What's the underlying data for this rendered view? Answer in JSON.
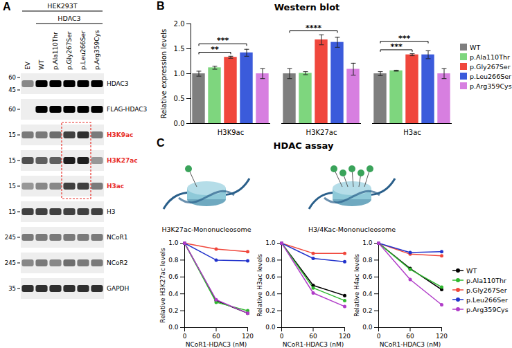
{
  "panel_a": {
    "label": "A",
    "cell_line": "HEK293T",
    "construct": "HDAC3",
    "lanes": [
      "EV",
      "WT",
      "p.Ala110Thr",
      "p.Gly267Ser",
      "p.Leu266Ser",
      "p.Arg359Cys"
    ],
    "construct_lanes": [
      "WT",
      "p.Ala110Thr",
      "p.Gly267Ser",
      "p.Leu266Ser",
      "p.Arg359Cys"
    ],
    "highlight": {
      "color": "#e8302a",
      "lanes": [
        "p.Gly267Ser",
        "p.Leu266Ser"
      ],
      "rows": [
        "H3K9ac",
        "H3K27ac",
        "H3ac"
      ]
    },
    "rows": [
      {
        "name": "HDAC3",
        "markers": [
          60,
          45
        ],
        "bands": [
          0.55,
          1,
          1,
          1,
          1,
          1
        ]
      },
      {
        "name": "FLAG-HDAC3",
        "markers": [
          60
        ],
        "bands": [
          0,
          1,
          1,
          1,
          1,
          1
        ]
      },
      {
        "name": "H3K9ac",
        "markers": [
          15
        ],
        "bands": [
          0.6,
          0.6,
          0.65,
          0.8,
          0.85,
          0.6
        ]
      },
      {
        "name": "H3K27ac",
        "markers": [
          15
        ],
        "bands": [
          0.75,
          0.7,
          0.7,
          0.9,
          0.9,
          0.5
        ]
      },
      {
        "name": "H3ac",
        "markers": [
          15
        ],
        "bands": [
          0.5,
          0.55,
          0.55,
          0.8,
          0.8,
          0.6
        ]
      },
      {
        "name": "H3",
        "markers": [
          15
        ],
        "bands": [
          0.8,
          0.8,
          0.8,
          0.8,
          0.8,
          0.8
        ]
      },
      {
        "name": "NCoR1",
        "markers": [
          245
        ],
        "bands": [
          0.6,
          0.6,
          0.6,
          0.6,
          0.6,
          0.6
        ]
      },
      {
        "name": "NCoR2",
        "markers": [
          245
        ],
        "bands": [
          0.55,
          0.6,
          0.55,
          0.65,
          0.6,
          0.6
        ]
      },
      {
        "name": "GAPDH",
        "markers": [
          35
        ],
        "bands": [
          0.85,
          0.85,
          0.85,
          0.85,
          0.85,
          0.85
        ]
      }
    ]
  },
  "panel_c": {
    "label": "C",
    "title": "HDAC assay",
    "subtitles": [
      "H3K27ac-Mononucleosome",
      "H3/4Kac-Mononucleosome"
    ]
  },
  "chart_data": [
    {
      "panel_label": "B",
      "type": "bar",
      "title": "Western blot",
      "y_label": "Relative expression levels",
      "categories": [
        "H3K9ac",
        "H3K27ac",
        "H3ac"
      ],
      "series": [
        {
          "name": "WT",
          "color": "#7f7f7f",
          "values": [
            1.0,
            1.0,
            1.0
          ],
          "errors": [
            0.05,
            0.1,
            0.04
          ]
        },
        {
          "name": "p.Ala110Thr",
          "color": "#7ed67e",
          "values": [
            1.12,
            1.01,
            1.06
          ],
          "errors": [
            0.03,
            0.03,
            0.01
          ]
        },
        {
          "name": "p.Gly267Ser",
          "color": "#f0473c",
          "values": [
            1.33,
            1.68,
            1.38
          ],
          "errors": [
            0.02,
            0.1,
            0.02
          ]
        },
        {
          "name": "p.Leu266Ser",
          "color": "#3b5bdb",
          "values": [
            1.42,
            1.63,
            1.38
          ],
          "errors": [
            0.07,
            0.1,
            0.08
          ]
        },
        {
          "name": "p.Arg359Cys",
          "color": "#d77fe0",
          "values": [
            1.0,
            1.09,
            1.0
          ],
          "errors": [
            0.1,
            0.12,
            0.1
          ]
        }
      ],
      "ylim": [
        0,
        2.0
      ],
      "yticks": [
        {
          "value": 0,
          "label": "0.0"
        },
        {
          "value": 0.5,
          "label": "0.5"
        },
        {
          "value": 1,
          "label": "1.0"
        },
        {
          "value": 1.5,
          "label": "1.5"
        },
        {
          "value": 2,
          "label": "2.0"
        }
      ],
      "legend": "right",
      "annotations": [
        {
          "category": "H3K9ac",
          "from": "WT",
          "to": "p.Gly267Ser",
          "text": "**"
        },
        {
          "category": "H3K9ac",
          "from": "WT",
          "to": "p.Leu266Ser",
          "text": "***"
        },
        {
          "category": "H3K27ac",
          "from": "WT",
          "to": "p.Leu266Ser",
          "text": "****"
        },
        {
          "category": "H3ac",
          "from": "WT",
          "to": "p.Gly267Ser",
          "text": "***"
        },
        {
          "category": "H3ac",
          "from": "WT",
          "to": "p.Leu266Ser",
          "text": "***"
        }
      ]
    },
    {
      "type": "line",
      "x_label": "NCoR1-HDAC3 (nM)",
      "y_label": "Relative H3K27ac levels",
      "marker": "circle",
      "x": [
        0,
        60,
        120
      ],
      "xlim": [
        0,
        120
      ],
      "xticks": [
        0,
        60,
        120
      ],
      "ylim": [
        0,
        1.0
      ],
      "yticks": [
        {
          "value": 0,
          "label": "0.0"
        },
        {
          "value": 0.2,
          "label": "0.2"
        },
        {
          "value": 0.4,
          "label": "0.4"
        },
        {
          "value": 0.6,
          "label": "0.6"
        },
        {
          "value": 0.8,
          "label": "0.8"
        },
        {
          "value": 1,
          "label": "1.0"
        }
      ],
      "series": [
        {
          "name": "WT",
          "color": "#000000",
          "values": [
            1.0,
            0.32,
            0.17
          ]
        },
        {
          "name": "p.Ala110Thr",
          "color": "#2fb82f",
          "values": [
            1.0,
            0.3,
            0.2
          ]
        },
        {
          "name": "p.Gly267Ser",
          "color": "#f0473c",
          "values": [
            1.0,
            0.93,
            0.9
          ]
        },
        {
          "name": "p.Leu266Ser",
          "color": "#2233cc",
          "values": [
            1.0,
            0.8,
            0.79
          ]
        },
        {
          "name": "p.Arg359Cys",
          "color": "#b03cc8",
          "values": [
            1.0,
            0.33,
            0.17
          ]
        }
      ]
    },
    {
      "type": "line",
      "x_label": "NCoR1-HDAC3 (nM)",
      "y_label": "Relative H3ac levels",
      "marker": "circle",
      "x": [
        0,
        60,
        120
      ],
      "xlim": [
        0,
        120
      ],
      "xticks": [
        0,
        60,
        120
      ],
      "ylim": [
        0,
        1.0
      ],
      "yticks": [
        {
          "value": 0,
          "label": "0.0"
        },
        {
          "value": 0.2,
          "label": "0.2"
        },
        {
          "value": 0.4,
          "label": "0.4"
        },
        {
          "value": 0.6,
          "label": "0.6"
        },
        {
          "value": 0.8,
          "label": "0.8"
        },
        {
          "value": 1,
          "label": "1.0"
        }
      ],
      "series": [
        {
          "name": "WT",
          "color": "#000000",
          "values": [
            1.0,
            0.5,
            0.38
          ]
        },
        {
          "name": "p.Ala110Thr",
          "color": "#2fb82f",
          "values": [
            1.0,
            0.47,
            0.32
          ]
        },
        {
          "name": "p.Gly267Ser",
          "color": "#f0473c",
          "values": [
            1.0,
            0.88,
            0.88
          ]
        },
        {
          "name": "p.Leu266Ser",
          "color": "#2233cc",
          "values": [
            1.0,
            0.82,
            0.78
          ]
        },
        {
          "name": "p.Arg359Cys",
          "color": "#b03cc8",
          "values": [
            1.0,
            0.41,
            0.25
          ]
        }
      ]
    },
    {
      "type": "line",
      "x_label": "NCoR1-HDAC3 (nM)",
      "y_label": "Relative H4ac levels",
      "marker": "circle",
      "x": [
        0,
        60,
        120
      ],
      "xlim": [
        0,
        120
      ],
      "xticks": [
        0,
        60,
        120
      ],
      "ylim": [
        0,
        1.0
      ],
      "yticks": [
        {
          "value": 0,
          "label": "0.0"
        },
        {
          "value": 0.2,
          "label": "0.2"
        },
        {
          "value": 0.4,
          "label": "0.4"
        },
        {
          "value": 0.6,
          "label": "0.6"
        },
        {
          "value": 0.8,
          "label": "0.8"
        },
        {
          "value": 1,
          "label": "1.0"
        }
      ],
      "legend": "right",
      "series": [
        {
          "name": "WT",
          "color": "#000000",
          "values": [
            1.0,
            0.7,
            0.45
          ]
        },
        {
          "name": "p.Ala110Thr",
          "color": "#2fb82f",
          "values": [
            1.0,
            0.69,
            0.48
          ]
        },
        {
          "name": "p.Gly267Ser",
          "color": "#f0473c",
          "values": [
            1.0,
            0.87,
            0.85
          ]
        },
        {
          "name": "p.Leu266Ser",
          "color": "#2233cc",
          "values": [
            1.0,
            0.89,
            0.9
          ]
        },
        {
          "name": "p.Arg359Cys",
          "color": "#b03cc8",
          "values": [
            1.0,
            0.57,
            0.27
          ]
        }
      ]
    }
  ]
}
